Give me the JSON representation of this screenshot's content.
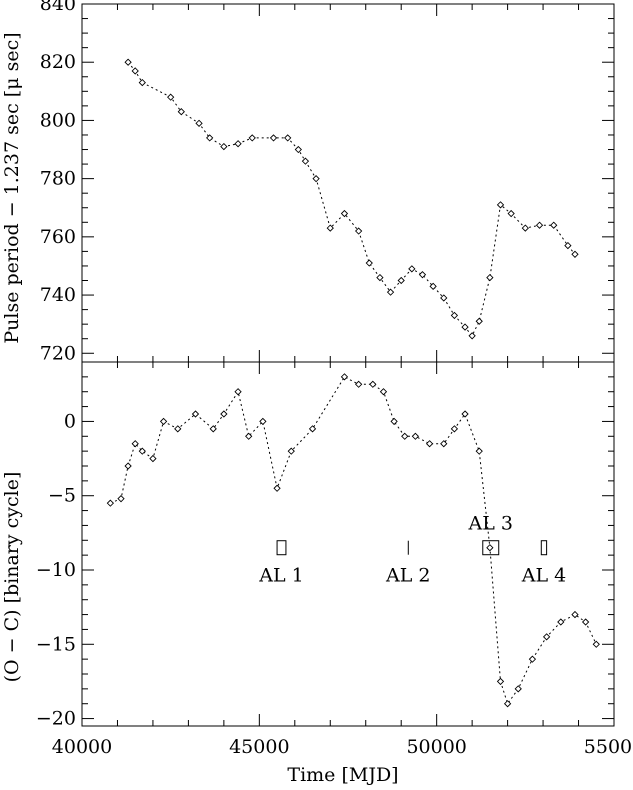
{
  "chart_data": [
    {
      "type": "scatter",
      "title": "",
      "xlabel": "",
      "ylabel": "Pulse period − 1.237 sec [μ sec]",
      "xlim": [
        40000,
        55000
      ],
      "ylim": [
        717,
        840
      ],
      "x_ticks": [],
      "y_ticks": [
        "720",
        "740",
        "760",
        "780",
        "800",
        "820",
        "840"
      ],
      "series": [
        {
          "marker": "diamond",
          "line": "dotted",
          "x": [
            41300,
            41500,
            41700,
            42500,
            42800,
            43300,
            43600,
            44000,
            44400,
            44800,
            45400,
            45800,
            46100,
            46300,
            46600,
            47000,
            47400,
            47800,
            48100,
            48400,
            48700,
            49000,
            49300,
            49600,
            49900,
            50200,
            50500,
            50800,
            51000,
            51200,
            51500,
            51800,
            52100,
            52500,
            52900,
            53300,
            53700,
            53900
          ],
          "y": [
            820,
            817,
            813,
            808,
            803,
            799,
            794,
            791,
            792,
            794,
            794,
            794,
            790,
            786,
            780,
            763,
            768,
            762,
            751,
            746,
            741,
            745,
            749,
            747,
            743,
            739,
            733,
            729,
            726,
            731,
            746,
            771,
            768,
            763,
            764,
            764,
            757,
            754
          ]
        }
      ]
    },
    {
      "type": "scatter",
      "title": "",
      "xlabel": "Time [MJD]",
      "ylabel": "(O − C)  [binary cycle]",
      "xlim": [
        40000,
        55000
      ],
      "ylim": [
        -20.5,
        4
      ],
      "x_ticks": [
        "40000",
        "45000",
        "50000",
        "55000"
      ],
      "y_ticks": [
        "−20",
        "−15",
        "−10",
        "−5",
        "0"
      ],
      "series": [
        {
          "marker": "diamond",
          "line": "dotted",
          "x": [
            40800,
            41100,
            41300,
            41500,
            41700,
            42000,
            42300,
            42700,
            43200,
            43700,
            44000,
            44400,
            44700,
            45100,
            45500,
            45900,
            46500,
            47400,
            47800,
            48200,
            48500,
            48800,
            49100,
            49400,
            49800,
            50200,
            50500,
            50800,
            51200,
            51500,
            51800,
            52000,
            52300,
            52700,
            53100,
            53500,
            53900,
            54200,
            54500
          ],
          "y": [
            -5.5,
            -5.2,
            -3.0,
            -1.5,
            -2.0,
            -2.5,
            0.0,
            -0.5,
            0.5,
            -0.5,
            0.5,
            2.0,
            -1.0,
            0.0,
            -4.5,
            -2.0,
            -0.5,
            3.0,
            2.5,
            2.5,
            2.0,
            0.0,
            -1.0,
            -1.0,
            -1.5,
            -1.5,
            -0.5,
            0.5,
            -2.0,
            -8.5,
            -17.5,
            -19.0,
            -18.0,
            -16.0,
            -14.5,
            -13.5,
            -13.0,
            -13.5,
            -15.0
          ]
        }
      ],
      "annotations": [
        {
          "label": "AL 1",
          "x_start": 45500,
          "x_end": 45750,
          "y": -8.5
        },
        {
          "label": "AL 2",
          "x_start": 49200,
          "x_end": 49200,
          "y": -8.5
        },
        {
          "label": "AL 3",
          "x_start": 51300,
          "x_end": 51750,
          "y": -8.5
        },
        {
          "label": "AL 4",
          "x_start": 52950,
          "x_end": 53100,
          "y": -8.5
        }
      ]
    }
  ]
}
